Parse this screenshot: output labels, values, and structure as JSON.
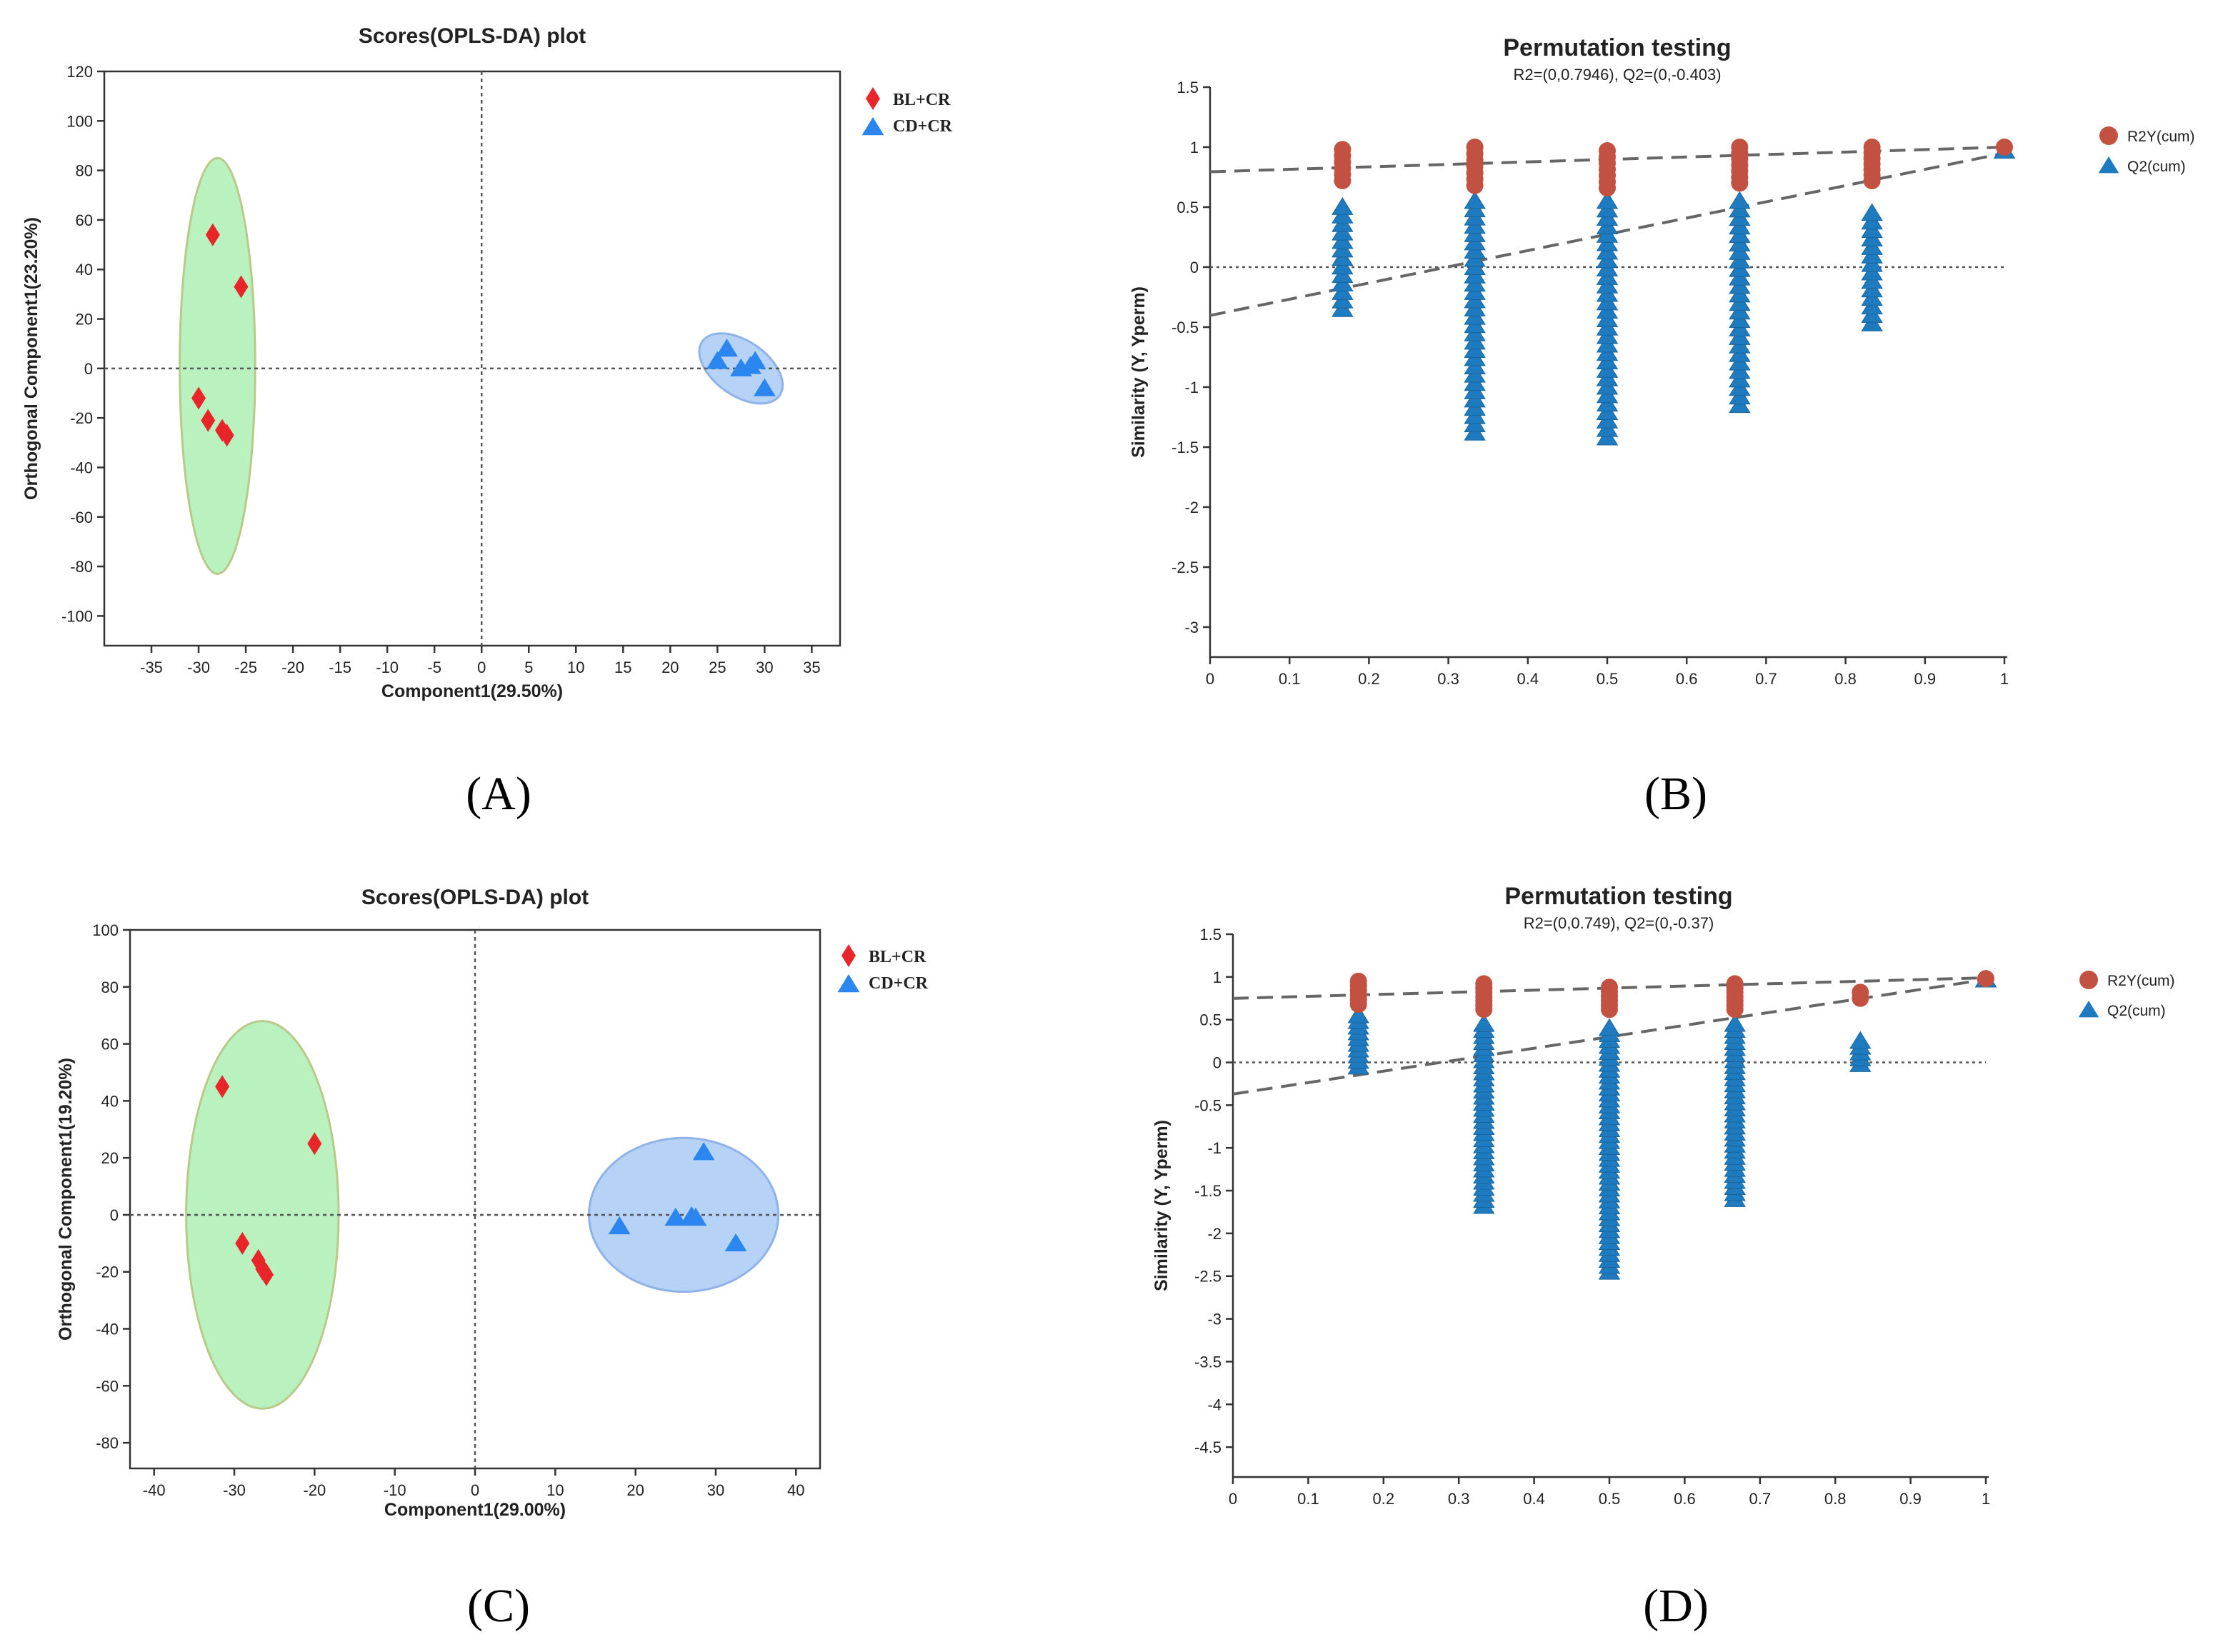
{
  "figure": {
    "panel_labels": [
      "(A)",
      "(B)",
      "(C)",
      "(D)"
    ]
  },
  "colors": {
    "bl_marker": "#e8262a",
    "cd_marker": "#2b86f0",
    "r2y": "#c25141",
    "q2": "#1f7bbf",
    "ellipse_green": "#aef0b4",
    "ellipse_blue": "#a9caf5",
    "axis": "#333333"
  },
  "chart_data": [
    {
      "id": "A",
      "type": "scatter",
      "title": "Scores(OPLS-DA) plot",
      "xlabel": "Component1(29.50%)",
      "ylabel": "Orthogonal Component1(23.20%)",
      "xlim": [
        -40,
        38
      ],
      "ylim": [
        -112,
        120
      ],
      "xticks": [
        -35,
        -30,
        -25,
        -20,
        -15,
        -10,
        -5,
        0,
        5,
        10,
        15,
        20,
        25,
        30,
        35
      ],
      "yticks": [
        -100,
        -80,
        -60,
        -40,
        -20,
        0,
        20,
        40,
        60,
        80,
        100,
        120
      ],
      "zero_lines": true,
      "legend_position": "top-right",
      "series": [
        {
          "name": "BL+CR",
          "marker": "diamond",
          "points": [
            [
              -28.5,
              54
            ],
            [
              -25.5,
              33
            ],
            [
              -30,
              -12
            ],
            [
              -29,
              -21
            ],
            [
              -27.5,
              -25
            ],
            [
              -27,
              -27
            ]
          ],
          "ellipse": {
            "cx": -28,
            "cy": 1,
            "rx": 4,
            "ry": 84
          }
        },
        {
          "name": "CD+CR",
          "marker": "triangle",
          "points": [
            [
              25,
              3
            ],
            [
              26,
              8
            ],
            [
              27.5,
              0
            ],
            [
              28.5,
              1
            ],
            [
              29,
              3
            ],
            [
              30,
              -8
            ]
          ],
          "ellipse": {
            "cx": 27.5,
            "cy": 0,
            "rx": 5,
            "ry": 11,
            "rotate": 35
          }
        }
      ]
    },
    {
      "id": "B",
      "type": "scatter",
      "title": "Permutation testing",
      "subtitle": "R2=(0,0.7946), Q2=(0,-0.403)",
      "xlabel": "",
      "ylabel": "Similarity (Y, Yperm)",
      "xlim": [
        0,
        1
      ],
      "ylim": [
        -3.25,
        1.5
      ],
      "xticks": [
        "0",
        "0.1",
        "0.2",
        "0.3",
        "0.4",
        "0.5",
        "0.6",
        "0.7",
        "0.8",
        "0.9",
        "1"
      ],
      "yticks": [
        "1.5",
        "1",
        "0.5",
        "0",
        "-0.5",
        "-1",
        "-1.5",
        "-2",
        "-2.5",
        "-3"
      ],
      "zero_line": true,
      "legend_position": "top-right",
      "r2_line": [
        [
          0,
          0.7946
        ],
        [
          1,
          1.0
        ]
      ],
      "q2_line": [
        [
          0,
          -0.403
        ],
        [
          1,
          0.95
        ]
      ],
      "series": [
        {
          "name": "R2Y(cum)",
          "marker": "circle",
          "x": [
            0.1667,
            0.3333,
            0.5,
            0.6667,
            0.8333,
            1.0
          ],
          "y_range": [
            [
              0.72,
              0.98
            ],
            [
              0.68,
              1.0
            ],
            [
              0.66,
              0.97
            ],
            [
              0.7,
              1.0
            ],
            [
              0.72,
              1.0
            ],
            [
              1.0,
              1.0
            ]
          ]
        },
        {
          "name": "Q2(cum)",
          "marker": "triangle",
          "x": [
            0.1667,
            0.3333,
            0.5,
            0.6667,
            0.8333,
            1.0
          ],
          "y_range": [
            [
              -0.35,
              0.5
            ],
            [
              -1.38,
              0.55
            ],
            [
              -1.42,
              0.55
            ],
            [
              -1.15,
              0.55
            ],
            [
              -0.47,
              0.45
            ],
            [
              0.97,
              0.97
            ]
          ]
        }
      ]
    },
    {
      "id": "C",
      "type": "scatter",
      "title": "Scores(OPLS-DA) plot",
      "xlabel": "Component1(29.00%)",
      "ylabel": "Orthogonal Component1(19.20%)",
      "xlim": [
        -43,
        43
      ],
      "ylim": [
        -89,
        100
      ],
      "xticks": [
        -40,
        -30,
        -20,
        -10,
        0,
        10,
        20,
        30,
        40
      ],
      "yticks": [
        -80,
        -60,
        -40,
        -20,
        0,
        20,
        40,
        60,
        80,
        100
      ],
      "zero_lines": true,
      "legend_position": "top-right",
      "series": [
        {
          "name": "BL+CR",
          "marker": "diamond",
          "points": [
            [
              -31.5,
              45
            ],
            [
              -20,
              25
            ],
            [
              -29,
              -10
            ],
            [
              -27,
              -16
            ],
            [
              -26.5,
              -19
            ],
            [
              -26,
              -21
            ]
          ],
          "ellipse": {
            "cx": -26.5,
            "cy": 0,
            "rx": 9.5,
            "ry": 68
          }
        },
        {
          "name": "CD+CR",
          "marker": "triangle",
          "points": [
            [
              18,
              -4
            ],
            [
              25,
              -1
            ],
            [
              27,
              -0.5
            ],
            [
              27.5,
              -1
            ],
            [
              28.5,
              22
            ],
            [
              32.5,
              -10
            ]
          ],
          "ellipse": {
            "cx": 26,
            "cy": 0,
            "rx": 11.8,
            "ry": 27
          }
        }
      ]
    },
    {
      "id": "D",
      "type": "scatter",
      "title": "Permutation testing",
      "subtitle": "R2=(0,0.749), Q2=(0,-0.37)",
      "xlabel": "",
      "ylabel": "Similarity (Y, Yperm)",
      "xlim": [
        0,
        1
      ],
      "ylim": [
        -4.85,
        1.5
      ],
      "xticks": [
        "0",
        "0.1",
        "0.2",
        "0.3",
        "0.4",
        "0.5",
        "0.6",
        "0.7",
        "0.8",
        "0.9",
        "1"
      ],
      "yticks": [
        "1.5",
        "1",
        "0.5",
        "0",
        "-0.5",
        "-1",
        "-1.5",
        "-2",
        "-2.5",
        "-3",
        "-3.5",
        "-4",
        "-4.5"
      ],
      "zero_line": true,
      "legend_position": "top-right",
      "r2_line": [
        [
          0,
          0.749
        ],
        [
          1,
          0.99
        ]
      ],
      "q2_line": [
        [
          0,
          -0.37
        ],
        [
          1,
          0.97
        ]
      ],
      "series": [
        {
          "name": "R2Y(cum)",
          "marker": "circle",
          "x": [
            0.1667,
            0.3333,
            0.5,
            0.6667,
            0.8333,
            1.0
          ],
          "y_range": [
            [
              0.68,
              0.95
            ],
            [
              0.62,
              0.92
            ],
            [
              0.62,
              0.88
            ],
            [
              0.62,
              0.92
            ],
            [
              0.75,
              0.82
            ],
            [
              0.98,
              0.98
            ]
          ]
        },
        {
          "name": "Q2(cum)",
          "marker": "triangle",
          "x": [
            0.1667,
            0.3333,
            0.5,
            0.6667,
            0.8333,
            1.0
          ],
          "y_range": [
            [
              -0.05,
              0.55
            ],
            [
              -1.68,
              0.45
            ],
            [
              -2.45,
              0.4
            ],
            [
              -1.6,
              0.45
            ],
            [
              -0.02,
              0.25
            ],
            [
              0.97,
              0.97
            ]
          ]
        }
      ]
    }
  ]
}
